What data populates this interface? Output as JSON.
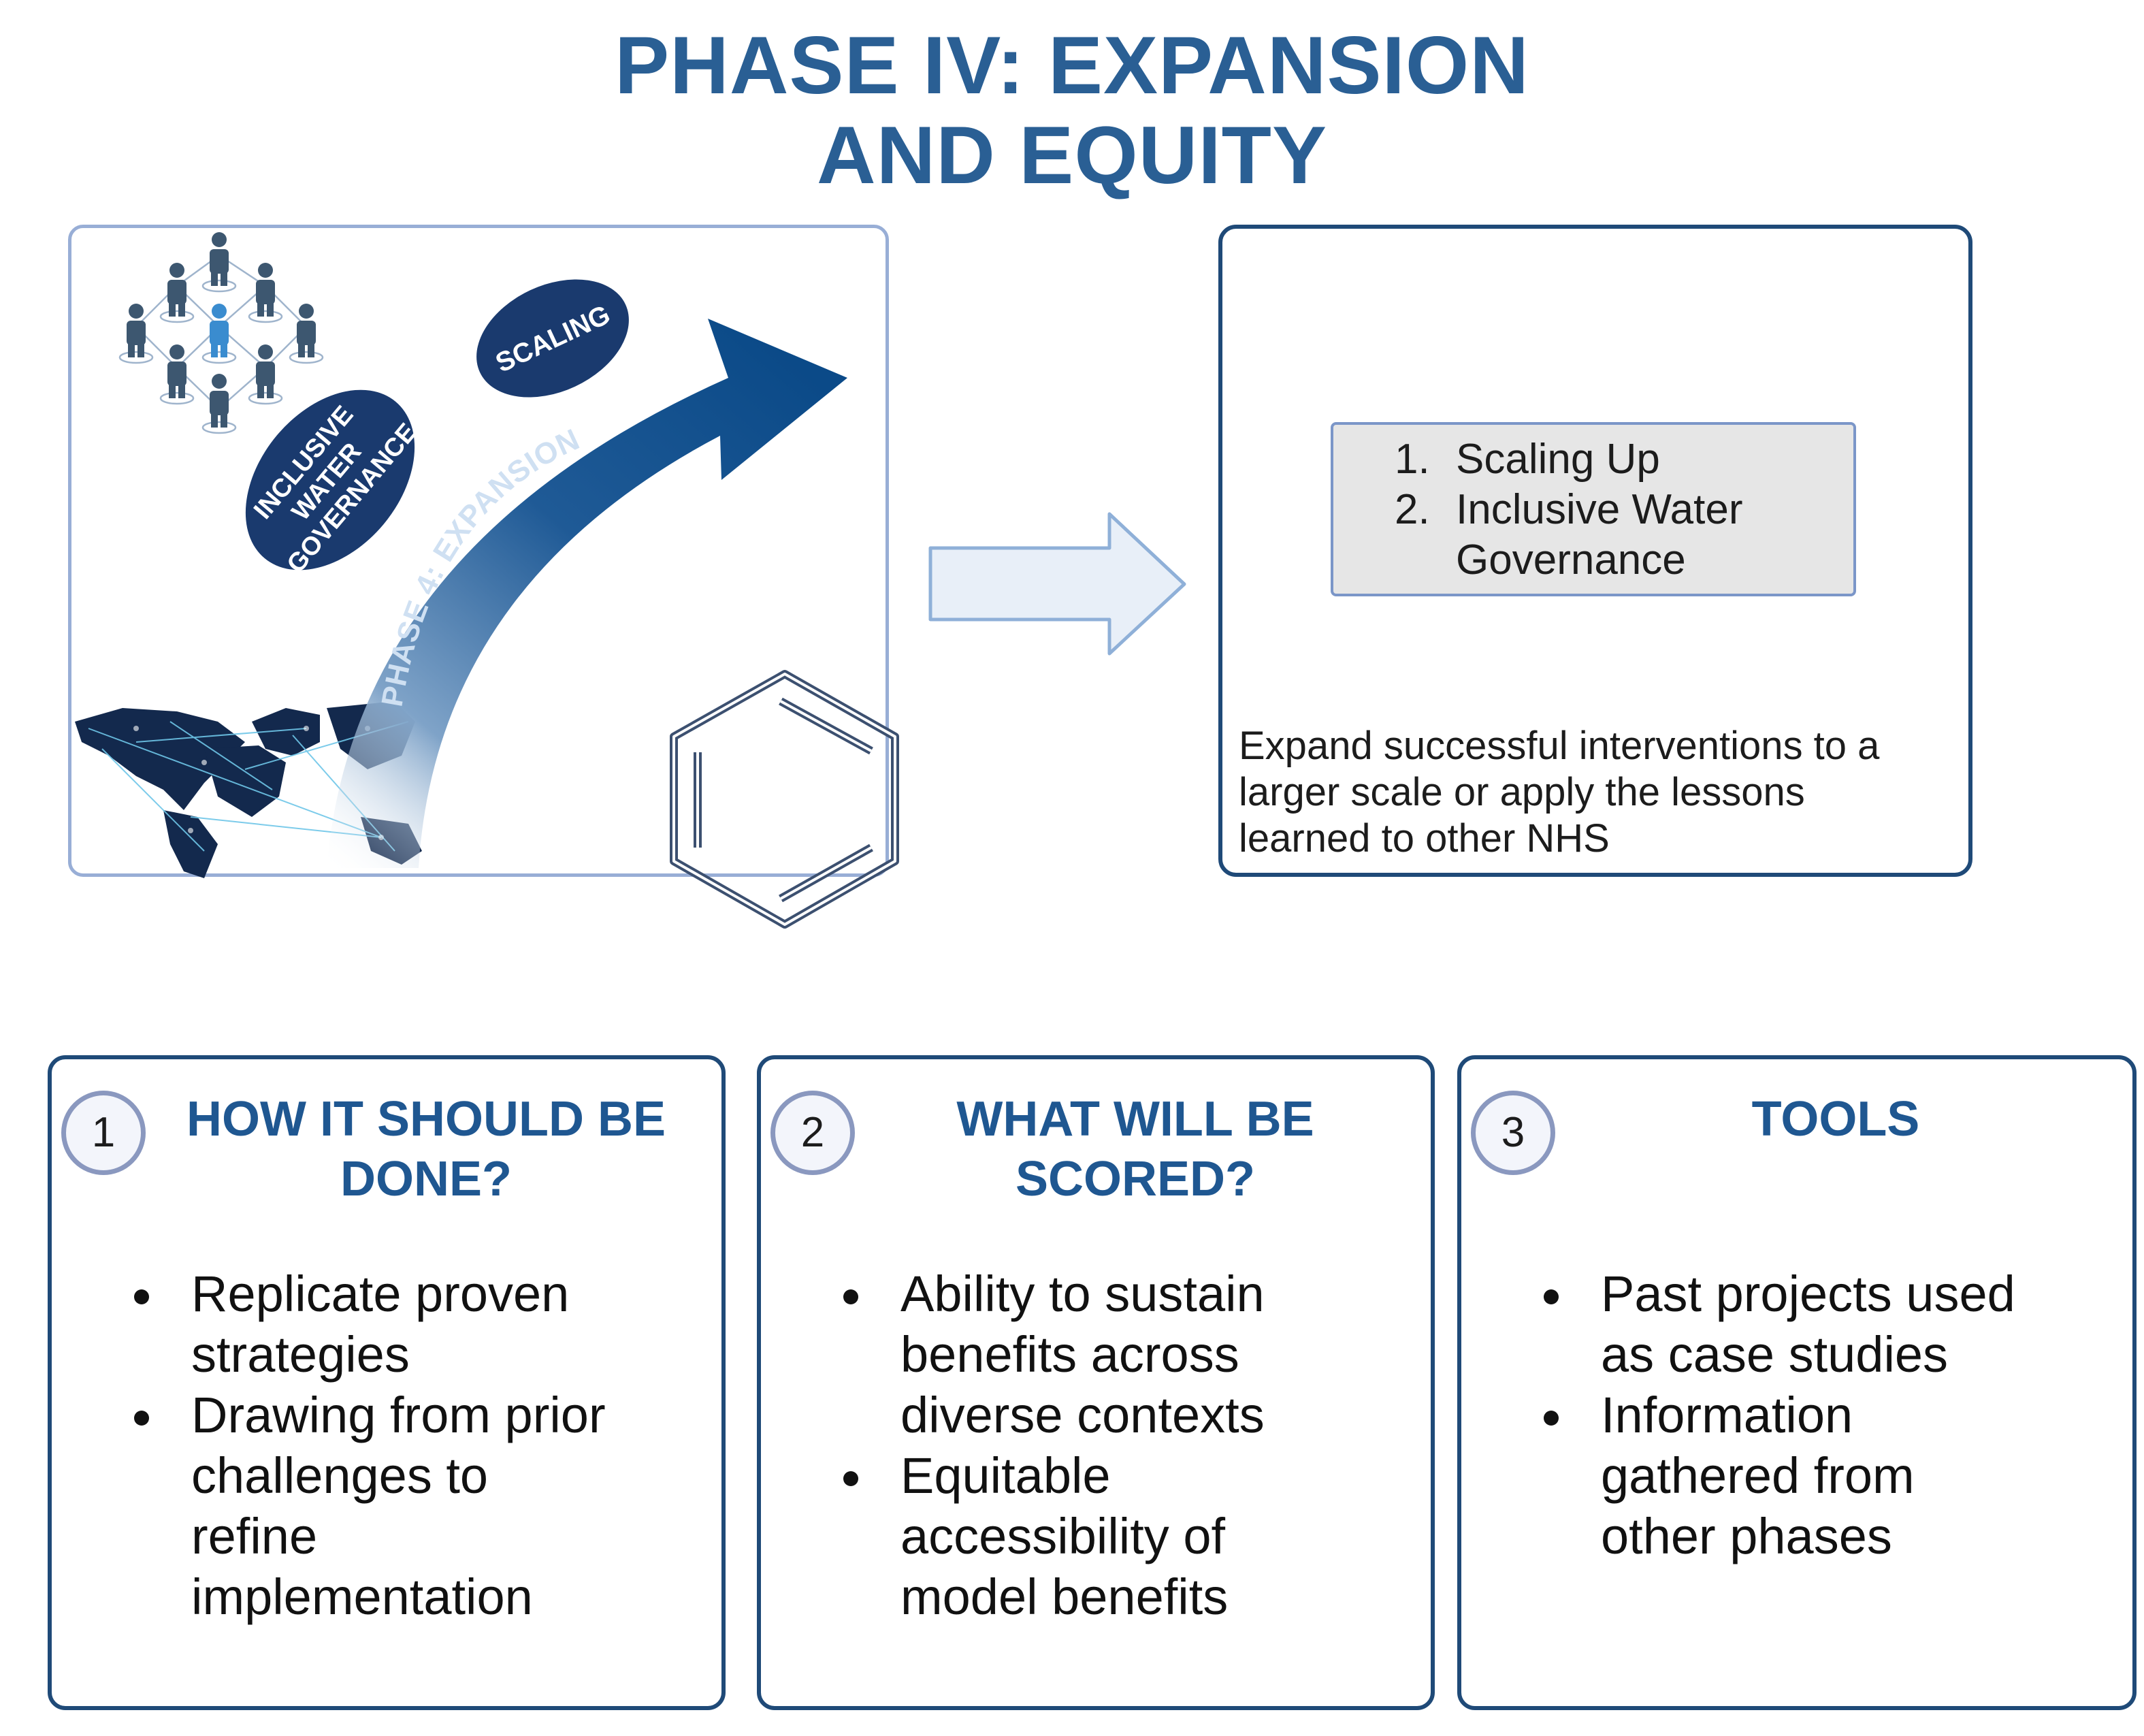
{
  "title": {
    "line1": "PHASE IV: EXPANSION",
    "line2": "AND EQUITY"
  },
  "illustration": {
    "scaling_label": "SCALING",
    "governance_label": [
      "INCLUSIVE",
      "WATER",
      "GOVERNANCE"
    ],
    "arrow_label": "PHASE 4: EXPANSION",
    "colors": {
      "navy": "#1a3a6e",
      "arrow": "#0e4e8c",
      "people": "#3d5770",
      "people_center": "#3a8ccf",
      "network": "#6ec6e8",
      "hexagon": "#3c5070"
    }
  },
  "summary": {
    "list": [
      {
        "num": "1.",
        "lines": [
          "Scaling Up"
        ]
      },
      {
        "num": "2.",
        "lines": [
          "Inclusive Water",
          "Governance"
        ]
      }
    ],
    "description": [
      "Expand successful interventions to a",
      "larger scale or apply the lessons",
      "learned to other NHS"
    ]
  },
  "panels": [
    {
      "badge": "1",
      "title": [
        "HOW IT SHOULD BE",
        "DONE?"
      ],
      "bullets": [
        [
          "Replicate proven",
          "strategies"
        ],
        [
          "Drawing from prior",
          "challenges to",
          "refine",
          "implementation"
        ]
      ]
    },
    {
      "badge": "2",
      "title": [
        "WHAT WILL BE",
        "SCORED?"
      ],
      "bullets": [
        [
          "Ability to sustain",
          "benefits across",
          "diverse contexts"
        ],
        [
          "Equitable",
          "accessibility of",
          "model benefits"
        ]
      ]
    },
    {
      "badge": "3",
      "title": [
        "TOOLS"
      ],
      "bullets": [
        [
          "Past projects used",
          "as case studies"
        ],
        [
          "Information",
          "gathered from",
          "other phases"
        ]
      ]
    }
  ]
}
